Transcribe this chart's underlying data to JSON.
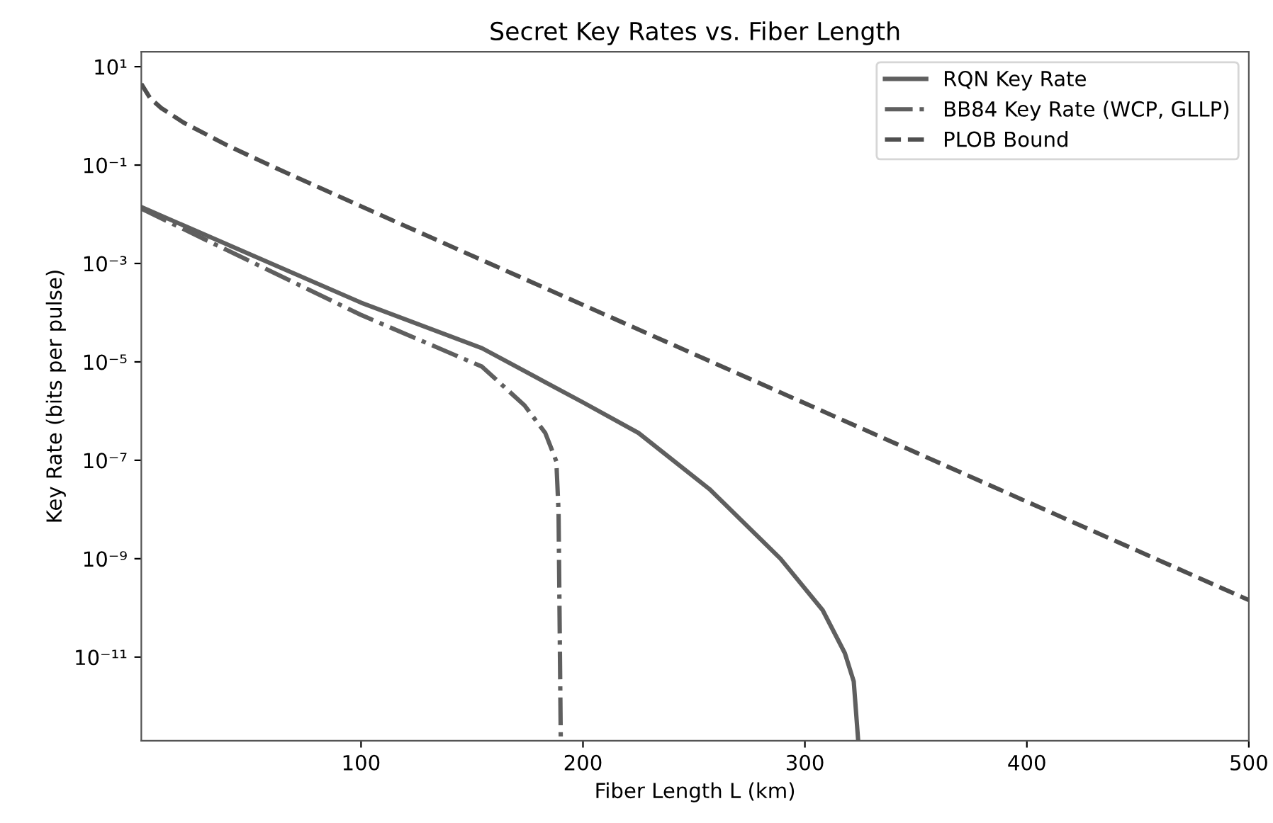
{
  "chart_data": {
    "type": "line",
    "title": "Secret Key Rates vs. Fiber Length",
    "xlabel": "Fiber Length L (km)",
    "ylabel": "Key Rate (bits per pulse)",
    "log": "y",
    "grid": false,
    "legend": "top right",
    "marker": "none",
    "xlim": [
      1,
      500
    ],
    "xticks": [
      100,
      200,
      300,
      400,
      500
    ],
    "ylim": [
      2e-13,
      20
    ],
    "yticks": [
      {
        "value": 10,
        "label": "10¹"
      },
      {
        "value": 0.1,
        "label": "10⁻¹"
      },
      {
        "value": 0.001,
        "label": "10⁻³"
      },
      {
        "value": 1e-05,
        "label": "10⁻⁵"
      },
      {
        "value": 1e-07,
        "label": "10⁻⁷"
      },
      {
        "value": 1e-09,
        "label": "10⁻⁹"
      },
      {
        "value": 1e-11,
        "label": "10⁻¹¹"
      }
    ],
    "series": [
      {
        "name": "RQN Key Rate",
        "color": "#5f5f5f",
        "line_style": "solid",
        "x": [
          1,
          100,
          154.5,
          200,
          225,
          257,
          289,
          308,
          318,
          322,
          324
        ],
        "values": [
          0.014,
          0.00016,
          1.9e-05,
          1.5e-06,
          3.6e-07,
          2.6e-08,
          1e-09,
          9e-11,
          1.2e-11,
          3.2e-12,
          2e-13
        ]
      },
      {
        "name": "BB84 Key Rate (WCP, GLLP)",
        "color": "#5f5f5f",
        "line_style": "dashdot",
        "x": [
          1,
          100,
          154.5,
          173.7,
          183,
          188,
          189,
          190
        ],
        "values": [
          0.013,
          9e-05,
          8e-06,
          1.3e-06,
          3.6e-07,
          9.5e-08,
          9e-09,
          2e-13
        ]
      },
      {
        "name": "PLOB Bound",
        "color": "#4f4f4f",
        "line_style": "dashed",
        "x": [
          1,
          5,
          10,
          20,
          40,
          60,
          100,
          150,
          200,
          250,
          300,
          350,
          400,
          450,
          500
        ],
        "values": [
          4.47,
          2.28,
          1.44,
          0.732,
          0.248,
          0.094,
          0.0145,
          0.00144,
          0.000144,
          1.44e-05,
          1.44e-06,
          1.44e-07,
          1.44e-08,
          1.44e-09,
          1.44e-10
        ]
      }
    ]
  }
}
